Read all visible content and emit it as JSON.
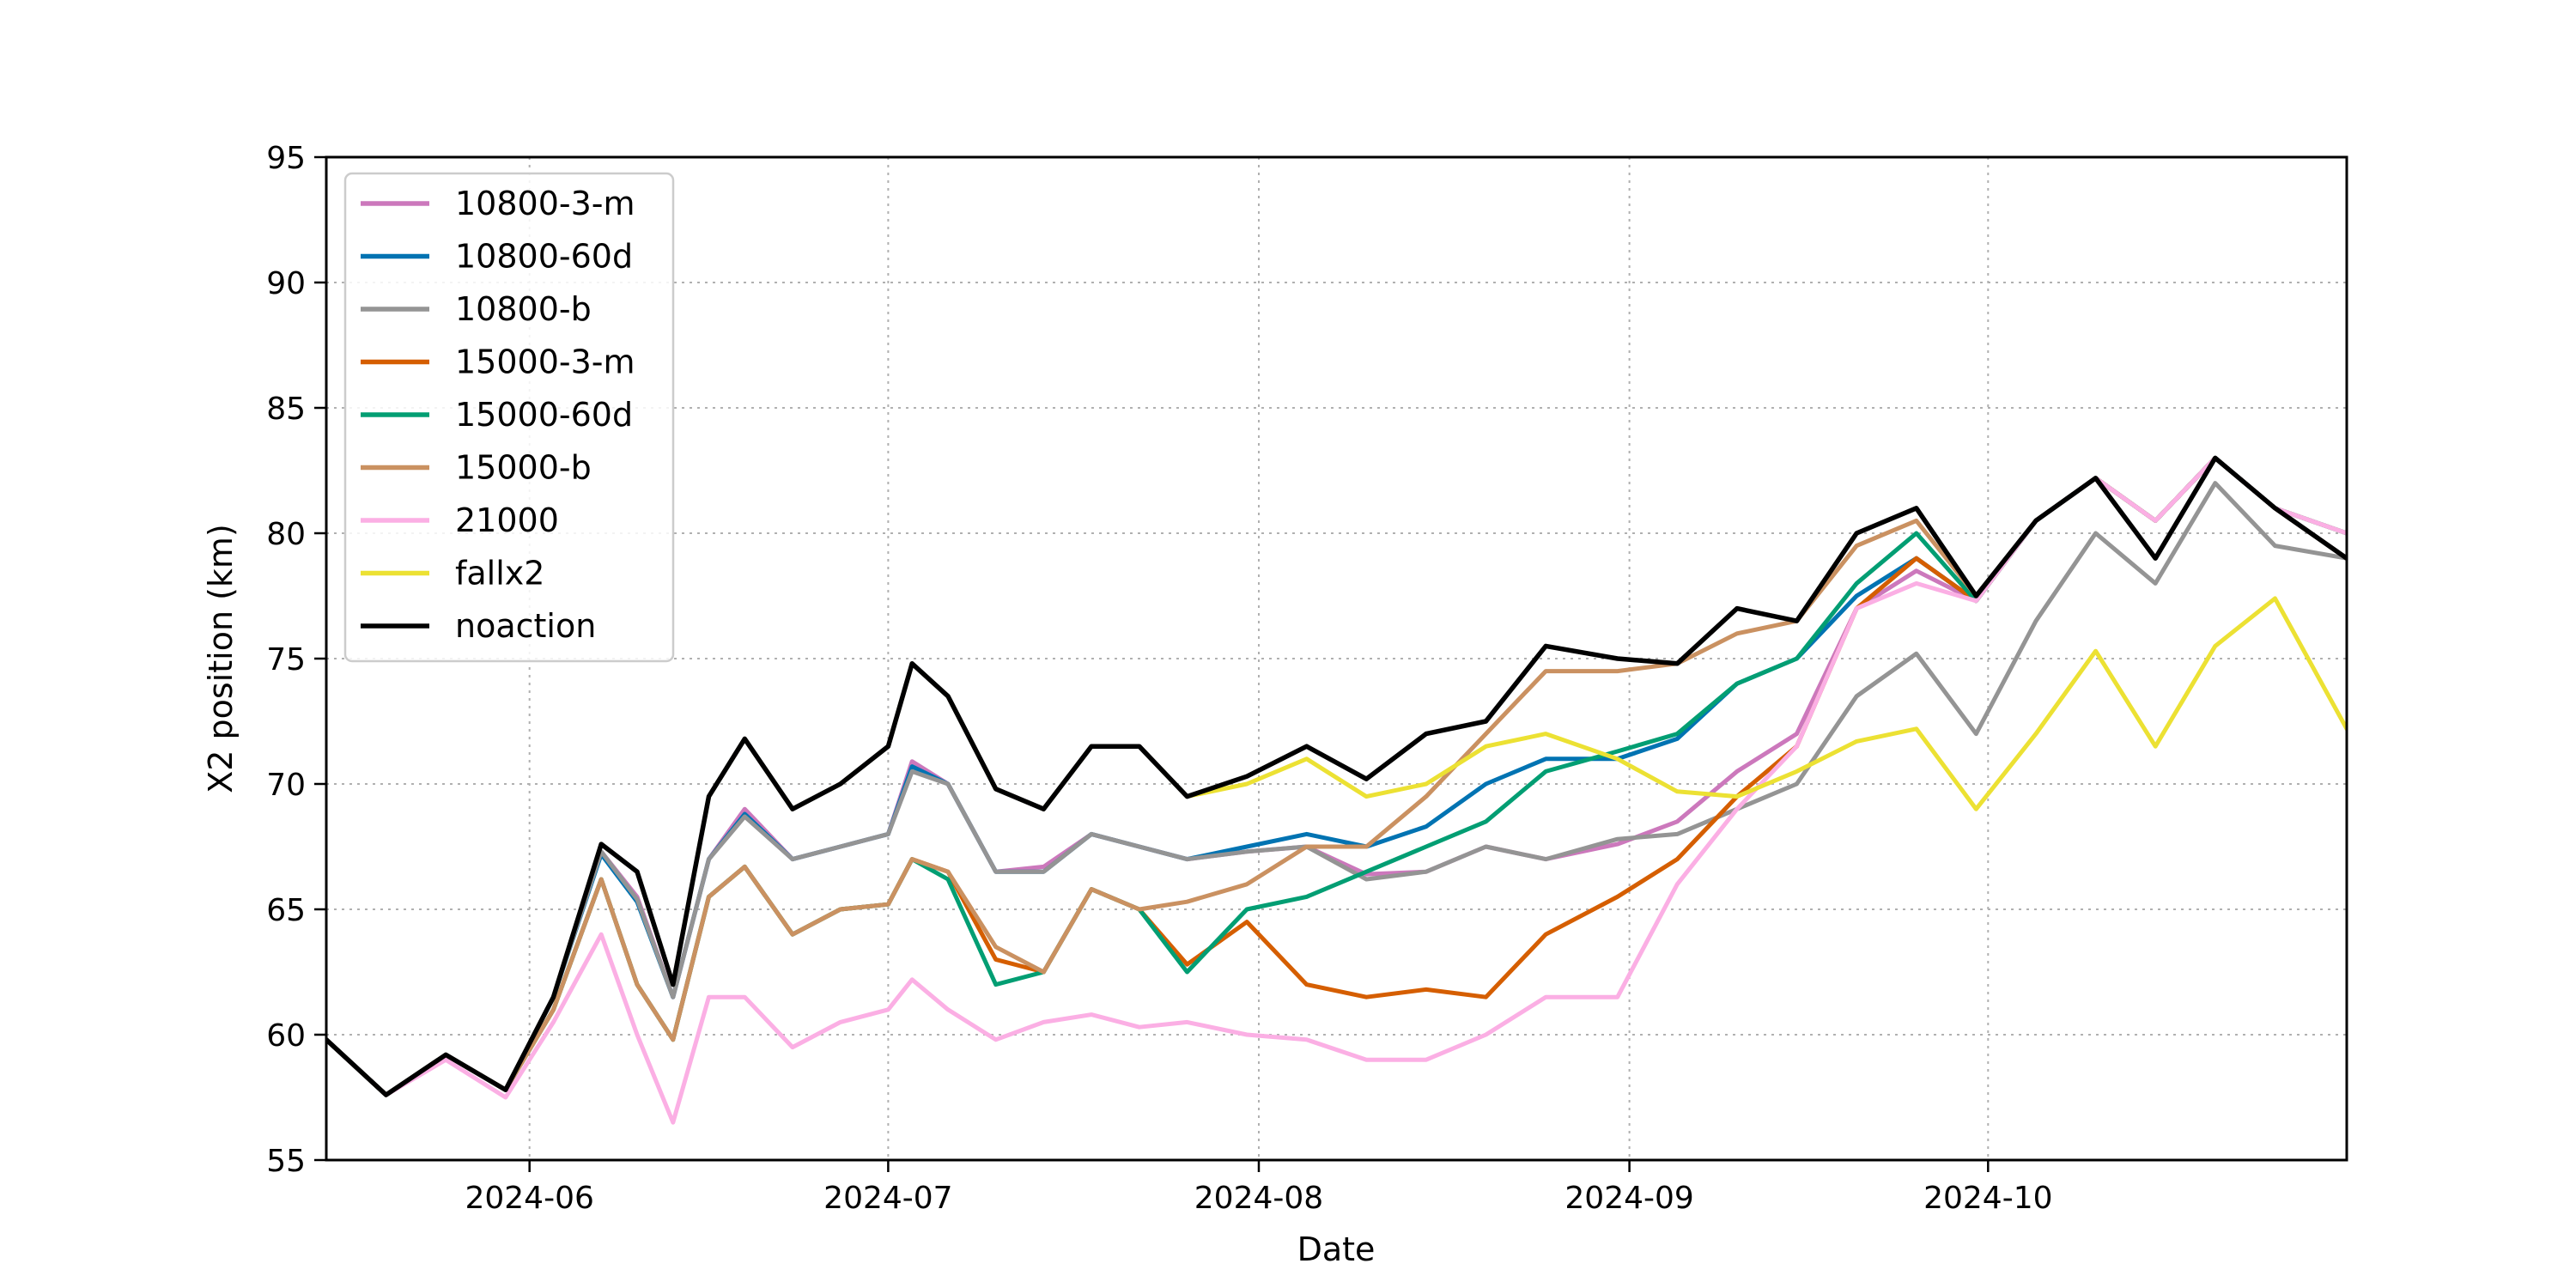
{
  "chart_data": {
    "type": "line",
    "title": "",
    "xlabel": "Date",
    "ylabel": "X2 position (km)",
    "xlim": [
      "2024-05-15",
      "2024-10-31"
    ],
    "ylim": [
      55,
      95
    ],
    "x_ticks": [
      "2024-06-01",
      "2024-07-01",
      "2024-08-01",
      "2024-09-01",
      "2024-10-01"
    ],
    "x_tick_labels": [
      "2024-06",
      "2024-07",
      "2024-08",
      "2024-09",
      "2024-10"
    ],
    "y_ticks": [
      55,
      60,
      65,
      70,
      75,
      80,
      85,
      90,
      95
    ],
    "grid": true,
    "legend_position": "top-left",
    "series": [
      {
        "name": "10800-3-m",
        "color": "#cc78bc",
        "x": [
          "2024-05-15",
          "2024-05-20",
          "2024-05-25",
          "2024-05-30",
          "2024-06-03",
          "2024-06-07",
          "2024-06-10",
          "2024-06-13",
          "2024-06-16",
          "2024-06-19",
          "2024-06-23",
          "2024-06-27",
          "2024-07-01",
          "2024-07-03",
          "2024-07-06",
          "2024-07-10",
          "2024-07-14",
          "2024-07-18",
          "2024-07-22",
          "2024-07-26",
          "2024-07-31",
          "2024-08-05",
          "2024-08-10",
          "2024-08-15",
          "2024-08-20",
          "2024-08-25",
          "2024-08-31",
          "2024-09-05",
          "2024-09-10",
          "2024-09-15",
          "2024-09-20",
          "2024-09-25",
          "2024-09-30",
          "2024-10-05",
          "2024-10-10",
          "2024-10-15",
          "2024-10-20",
          "2024-10-25",
          "2024-10-31"
        ],
        "values": [
          59.8,
          57.6,
          59.2,
          57.8,
          61.5,
          67.3,
          65.5,
          61.5,
          67.0,
          69.0,
          67.0,
          67.5,
          68.0,
          70.9,
          70.0,
          66.5,
          66.7,
          68.0,
          67.5,
          67.0,
          67.3,
          67.5,
          66.4,
          66.5,
          67.5,
          67.0,
          67.6,
          68.5,
          70.5,
          72.0,
          77.0,
          78.5,
          77.3,
          80.5,
          82.2,
          80.5,
          83.0,
          81.0,
          79.0
        ]
      },
      {
        "name": "10800-60d",
        "color": "#0173b2",
        "x": [
          "2024-05-15",
          "2024-05-20",
          "2024-05-25",
          "2024-05-30",
          "2024-06-03",
          "2024-06-07",
          "2024-06-10",
          "2024-06-13",
          "2024-06-16",
          "2024-06-19",
          "2024-06-23",
          "2024-06-27",
          "2024-07-01",
          "2024-07-03",
          "2024-07-06",
          "2024-07-10",
          "2024-07-14",
          "2024-07-18",
          "2024-07-22",
          "2024-07-26",
          "2024-07-31",
          "2024-08-05",
          "2024-08-10",
          "2024-08-15",
          "2024-08-20",
          "2024-08-25",
          "2024-08-31",
          "2024-09-05",
          "2024-09-10",
          "2024-09-15",
          "2024-09-20",
          "2024-09-25",
          "2024-09-30",
          "2024-10-05",
          "2024-10-10",
          "2024-10-15",
          "2024-10-20",
          "2024-10-25",
          "2024-10-31"
        ],
        "values": [
          59.8,
          57.6,
          59.2,
          57.8,
          61.5,
          67.2,
          65.3,
          61.5,
          67.0,
          68.8,
          67.0,
          67.5,
          68.0,
          70.7,
          70.0,
          66.5,
          66.5,
          68.0,
          67.5,
          67.0,
          67.5,
          68.0,
          67.5,
          68.3,
          70.0,
          71.0,
          71.0,
          71.8,
          74.0,
          75.0,
          77.5,
          79.0,
          77.3,
          80.5,
          82.2,
          80.5,
          83.0,
          81.0,
          80.0
        ]
      },
      {
        "name": "10800-b",
        "color": "#949494",
        "x": [
          "2024-05-15",
          "2024-05-20",
          "2024-05-25",
          "2024-05-30",
          "2024-06-03",
          "2024-06-07",
          "2024-06-10",
          "2024-06-13",
          "2024-06-16",
          "2024-06-19",
          "2024-06-23",
          "2024-06-27",
          "2024-07-01",
          "2024-07-03",
          "2024-07-06",
          "2024-07-10",
          "2024-07-14",
          "2024-07-18",
          "2024-07-22",
          "2024-07-26",
          "2024-07-31",
          "2024-08-05",
          "2024-08-10",
          "2024-08-15",
          "2024-08-20",
          "2024-08-25",
          "2024-08-31",
          "2024-09-05",
          "2024-09-10",
          "2024-09-15",
          "2024-09-20",
          "2024-09-25",
          "2024-09-30",
          "2024-10-05",
          "2024-10-10",
          "2024-10-15",
          "2024-10-20",
          "2024-10-25",
          "2024-10-31"
        ],
        "values": [
          59.8,
          57.6,
          59.2,
          57.8,
          61.5,
          67.3,
          65.4,
          61.5,
          67.0,
          68.7,
          67.0,
          67.5,
          68.0,
          70.5,
          70.0,
          66.5,
          66.5,
          68.0,
          67.5,
          67.0,
          67.3,
          67.5,
          66.2,
          66.5,
          67.5,
          67.0,
          67.8,
          68.0,
          69.0,
          70.0,
          73.5,
          75.2,
          72.0,
          76.5,
          80.0,
          78.0,
          82.0,
          79.5,
          79.0
        ]
      },
      {
        "name": "15000-3-m",
        "color": "#d55e00",
        "x": [
          "2024-05-15",
          "2024-05-20",
          "2024-05-25",
          "2024-05-30",
          "2024-06-03",
          "2024-06-07",
          "2024-06-10",
          "2024-06-13",
          "2024-06-16",
          "2024-06-19",
          "2024-06-23",
          "2024-06-27",
          "2024-07-01",
          "2024-07-03",
          "2024-07-06",
          "2024-07-10",
          "2024-07-14",
          "2024-07-18",
          "2024-07-22",
          "2024-07-26",
          "2024-07-31",
          "2024-08-05",
          "2024-08-10",
          "2024-08-15",
          "2024-08-20",
          "2024-08-25",
          "2024-08-31",
          "2024-09-05",
          "2024-09-10",
          "2024-09-15",
          "2024-09-20",
          "2024-09-25",
          "2024-09-30",
          "2024-10-05",
          "2024-10-10",
          "2024-10-15",
          "2024-10-20",
          "2024-10-25",
          "2024-10-31"
        ],
        "values": [
          59.8,
          57.6,
          59.2,
          57.8,
          61.0,
          66.2,
          62.0,
          59.8,
          65.5,
          66.7,
          64.0,
          65.0,
          65.2,
          67.0,
          66.5,
          63.0,
          62.5,
          65.8,
          65.0,
          62.8,
          64.5,
          62.0,
          61.5,
          61.8,
          61.5,
          64.0,
          65.5,
          67.0,
          69.5,
          71.5,
          77.0,
          79.0,
          77.3,
          80.5,
          82.2,
          80.5,
          83.0,
          81.0,
          79.0
        ]
      },
      {
        "name": "15000-60d",
        "color": "#029e73",
        "x": [
          "2024-05-15",
          "2024-05-20",
          "2024-05-25",
          "2024-05-30",
          "2024-06-03",
          "2024-06-07",
          "2024-06-10",
          "2024-06-13",
          "2024-06-16",
          "2024-06-19",
          "2024-06-23",
          "2024-06-27",
          "2024-07-01",
          "2024-07-03",
          "2024-07-06",
          "2024-07-10",
          "2024-07-14",
          "2024-07-18",
          "2024-07-22",
          "2024-07-26",
          "2024-07-31",
          "2024-08-05",
          "2024-08-10",
          "2024-08-15",
          "2024-08-20",
          "2024-08-25",
          "2024-08-31",
          "2024-09-05",
          "2024-09-10",
          "2024-09-15",
          "2024-09-20",
          "2024-09-25",
          "2024-09-30",
          "2024-10-05",
          "2024-10-10",
          "2024-10-15",
          "2024-10-20",
          "2024-10-25",
          "2024-10-31"
        ],
        "values": [
          59.8,
          57.6,
          59.2,
          57.8,
          61.0,
          66.2,
          62.0,
          59.8,
          65.5,
          66.7,
          64.0,
          65.0,
          65.2,
          67.0,
          66.2,
          62.0,
          62.5,
          65.8,
          65.0,
          62.5,
          65.0,
          65.5,
          66.5,
          67.5,
          68.5,
          70.5,
          71.3,
          72.0,
          74.0,
          75.0,
          78.0,
          80.0,
          77.3,
          80.5,
          82.2,
          80.5,
          83.0,
          81.0,
          80.0
        ]
      },
      {
        "name": "15000-b",
        "color": "#ca9161",
        "x": [
          "2024-05-15",
          "2024-05-20",
          "2024-05-25",
          "2024-05-30",
          "2024-06-03",
          "2024-06-07",
          "2024-06-10",
          "2024-06-13",
          "2024-06-16",
          "2024-06-19",
          "2024-06-23",
          "2024-06-27",
          "2024-07-01",
          "2024-07-03",
          "2024-07-06",
          "2024-07-10",
          "2024-07-14",
          "2024-07-18",
          "2024-07-22",
          "2024-07-26",
          "2024-07-31",
          "2024-08-05",
          "2024-08-10",
          "2024-08-15",
          "2024-08-20",
          "2024-08-25",
          "2024-08-31",
          "2024-09-05",
          "2024-09-10",
          "2024-09-15",
          "2024-09-20",
          "2024-09-25",
          "2024-09-30",
          "2024-10-05",
          "2024-10-10",
          "2024-10-15",
          "2024-10-20",
          "2024-10-25",
          "2024-10-31"
        ],
        "values": [
          59.8,
          57.6,
          59.2,
          57.8,
          61.0,
          66.2,
          62.0,
          59.8,
          65.5,
          66.7,
          64.0,
          65.0,
          65.2,
          67.0,
          66.5,
          63.5,
          62.5,
          65.8,
          65.0,
          65.3,
          66.0,
          67.5,
          67.5,
          69.5,
          72.0,
          74.5,
          74.5,
          74.8,
          76.0,
          76.5,
          79.5,
          80.5,
          77.5,
          80.5,
          82.2,
          80.5,
          83.0,
          81.0,
          80.0
        ]
      },
      {
        "name": "21000",
        "color": "#fbafe4",
        "x": [
          "2024-05-15",
          "2024-05-20",
          "2024-05-25",
          "2024-05-30",
          "2024-06-03",
          "2024-06-07",
          "2024-06-10",
          "2024-06-13",
          "2024-06-16",
          "2024-06-19",
          "2024-06-23",
          "2024-06-27",
          "2024-07-01",
          "2024-07-03",
          "2024-07-06",
          "2024-07-10",
          "2024-07-14",
          "2024-07-18",
          "2024-07-22",
          "2024-07-26",
          "2024-07-31",
          "2024-08-05",
          "2024-08-10",
          "2024-08-15",
          "2024-08-20",
          "2024-08-25",
          "2024-08-31",
          "2024-09-05",
          "2024-09-10",
          "2024-09-15",
          "2024-09-20",
          "2024-09-25",
          "2024-09-30",
          "2024-10-05",
          "2024-10-10",
          "2024-10-15",
          "2024-10-20",
          "2024-10-25",
          "2024-10-31"
        ],
        "values": [
          59.8,
          57.6,
          59.0,
          57.5,
          60.5,
          64.0,
          60.0,
          56.5,
          61.5,
          61.5,
          59.5,
          60.5,
          61.0,
          62.2,
          61.0,
          59.8,
          60.5,
          60.8,
          60.3,
          60.5,
          60.0,
          59.8,
          59.0,
          59.0,
          60.0,
          61.5,
          61.5,
          66.0,
          69.0,
          71.5,
          77.0,
          78.0,
          77.3,
          80.5,
          82.2,
          80.5,
          83.0,
          81.0,
          80.0
        ]
      },
      {
        "name": "fallx2",
        "color": "#ece133",
        "x": [
          "2024-05-15",
          "2024-05-20",
          "2024-05-25",
          "2024-05-30",
          "2024-06-03",
          "2024-06-07",
          "2024-06-10",
          "2024-06-13",
          "2024-06-16",
          "2024-06-19",
          "2024-06-23",
          "2024-06-27",
          "2024-07-01",
          "2024-07-03",
          "2024-07-06",
          "2024-07-10",
          "2024-07-14",
          "2024-07-18",
          "2024-07-22",
          "2024-07-26",
          "2024-07-31",
          "2024-08-05",
          "2024-08-10",
          "2024-08-15",
          "2024-08-20",
          "2024-08-25",
          "2024-08-31",
          "2024-09-05",
          "2024-09-10",
          "2024-09-15",
          "2024-09-20",
          "2024-09-25",
          "2024-09-30",
          "2024-10-05",
          "2024-10-10",
          "2024-10-15",
          "2024-10-20",
          "2024-10-25",
          "2024-10-31"
        ],
        "values": [
          59.8,
          57.6,
          59.2,
          57.8,
          61.5,
          67.6,
          66.5,
          62.0,
          69.5,
          71.8,
          69.0,
          70.0,
          71.5,
          74.8,
          73.5,
          69.8,
          69.0,
          71.5,
          71.5,
          69.5,
          70.0,
          71.0,
          69.5,
          70.0,
          71.5,
          72.0,
          71.0,
          69.7,
          69.5,
          70.5,
          71.7,
          72.2,
          69.0,
          72.0,
          75.3,
          71.5,
          75.5,
          77.4,
          72.2
        ]
      },
      {
        "name": "noaction",
        "color": "#000000",
        "x": [
          "2024-05-15",
          "2024-05-20",
          "2024-05-25",
          "2024-05-30",
          "2024-06-03",
          "2024-06-07",
          "2024-06-10",
          "2024-06-13",
          "2024-06-16",
          "2024-06-19",
          "2024-06-23",
          "2024-06-27",
          "2024-07-01",
          "2024-07-03",
          "2024-07-06",
          "2024-07-10",
          "2024-07-14",
          "2024-07-18",
          "2024-07-22",
          "2024-07-26",
          "2024-07-31",
          "2024-08-05",
          "2024-08-10",
          "2024-08-15",
          "2024-08-20",
          "2024-08-25",
          "2024-08-31",
          "2024-09-05",
          "2024-09-10",
          "2024-09-15",
          "2024-09-20",
          "2024-09-25",
          "2024-09-30",
          "2024-10-05",
          "2024-10-10",
          "2024-10-15",
          "2024-10-20",
          "2024-10-25",
          "2024-10-31"
        ],
        "values": [
          59.8,
          57.6,
          59.2,
          57.8,
          61.5,
          67.6,
          66.5,
          62.0,
          69.5,
          71.8,
          69.0,
          70.0,
          71.5,
          74.8,
          73.5,
          69.8,
          69.0,
          71.5,
          71.5,
          69.5,
          70.3,
          71.5,
          70.2,
          72.0,
          72.5,
          75.5,
          75.0,
          74.8,
          77.0,
          76.5,
          80.0,
          81.0,
          77.5,
          80.5,
          82.2,
          79.0,
          83.0,
          81.0,
          79.0
        ]
      }
    ]
  }
}
